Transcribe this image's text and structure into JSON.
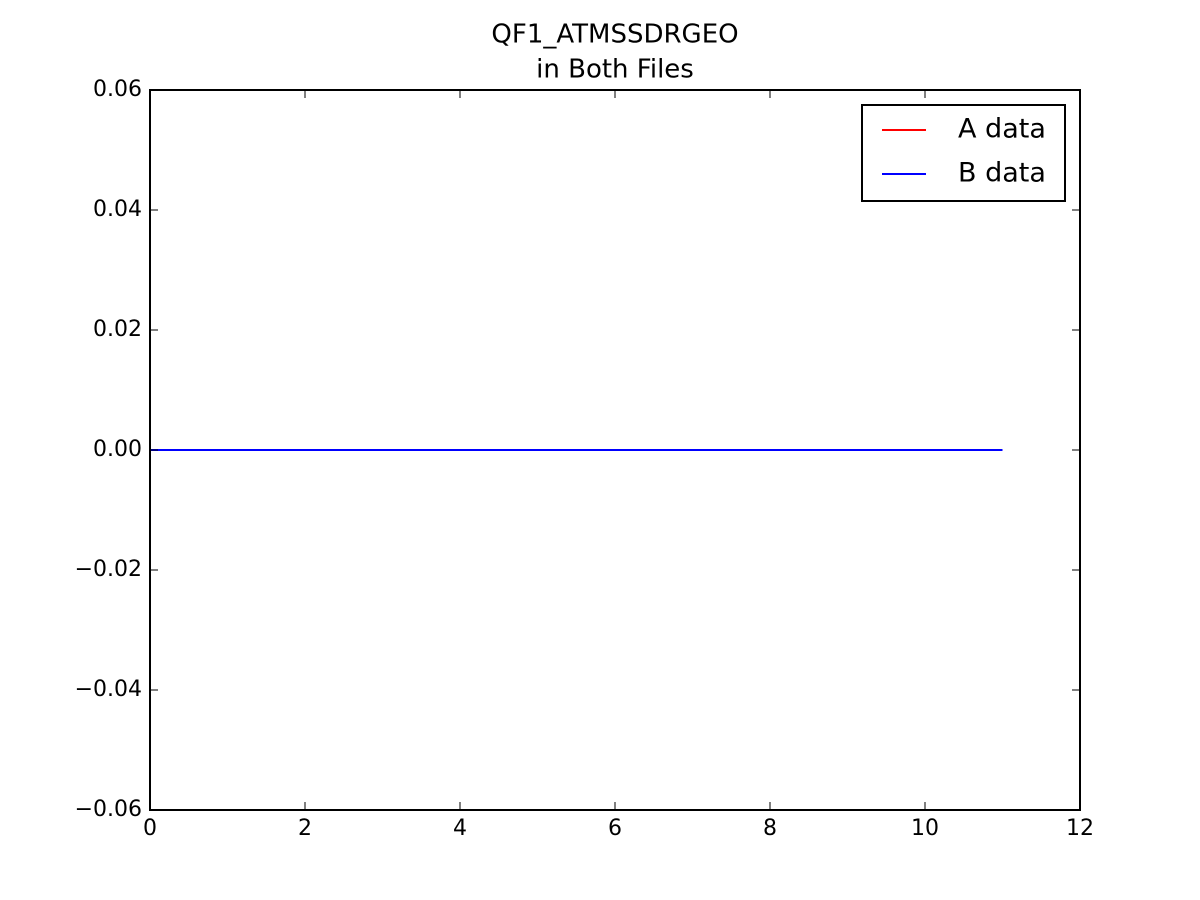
{
  "chart_data": {
    "type": "line",
    "title": [
      "QF1_ATMSSDRGEO",
      "in Both Files"
    ],
    "x": [
      0,
      1,
      2,
      3,
      4,
      5,
      6,
      7,
      8,
      9,
      10,
      11
    ],
    "series": [
      {
        "name": "A data",
        "color": "#ff0000",
        "values": [
          0,
          0,
          0,
          0,
          0,
          0,
          0,
          0,
          0,
          0,
          0,
          0
        ]
      },
      {
        "name": "B data",
        "color": "#0000ff",
        "values": [
          0,
          0,
          0,
          0,
          0,
          0,
          0,
          0,
          0,
          0,
          0,
          0
        ]
      }
    ],
    "xlim": [
      0,
      12
    ],
    "xticks": [
      0,
      2,
      4,
      6,
      8,
      10,
      12
    ],
    "ylim": [
      -0.06,
      0.06
    ],
    "yticks": [
      {
        "value": -0.06,
        "label": "−0.06"
      },
      {
        "value": -0.04,
        "label": "−0.04"
      },
      {
        "value": -0.02,
        "label": "−0.02"
      },
      {
        "value": 0,
        "label": "0.00"
      },
      {
        "value": 0.02,
        "label": "0.02"
      },
      {
        "value": 0.04,
        "label": "0.04"
      },
      {
        "value": 0.06,
        "label": "0.06"
      }
    ],
    "legend": "upper right"
  }
}
